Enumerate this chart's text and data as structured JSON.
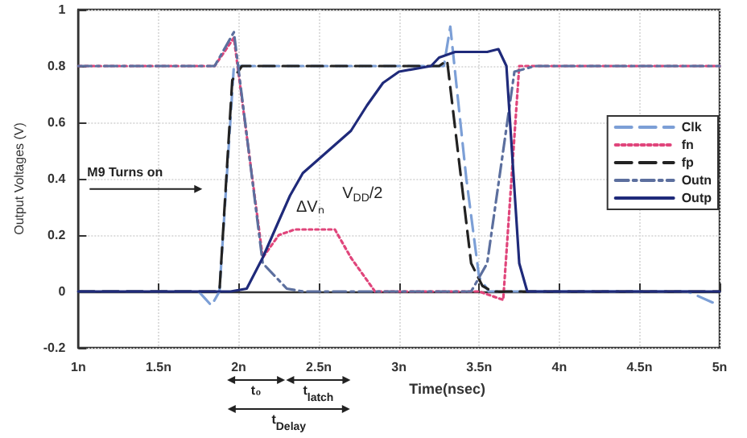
{
  "chart_data": {
    "type": "line",
    "xlabel": "Time(nsec)",
    "ylabel": "Output Voltages (V)",
    "xlim": [
      1,
      5
    ],
    "xticks": [
      {
        "value": 1,
        "label": "1n"
      },
      {
        "value": 1.5,
        "label": "1.5n"
      },
      {
        "value": 2,
        "label": "2n"
      },
      {
        "value": 2.5,
        "label": "2.5n"
      },
      {
        "value": 3,
        "label": "3n"
      },
      {
        "value": 3.5,
        "label": "3.5n"
      },
      {
        "value": 4,
        "label": "4n"
      },
      {
        "value": 4.5,
        "label": "4.5n"
      },
      {
        "value": 5,
        "label": "5n"
      }
    ],
    "ylim": [
      -0.2,
      1
    ],
    "yticks": [
      -0.2,
      0,
      0.2,
      0.4,
      0.6,
      0.8,
      1
    ],
    "grid": true,
    "legend": "right",
    "marker": "none",
    "series": [
      {
        "name": "Clk",
        "color": "#7c9fd6",
        "line_style": "dashed",
        "x": [
          1,
          1.75,
          1.83,
          1.88,
          1.97,
          2.05,
          3.28,
          3.32,
          3.42,
          3.5,
          3.56,
          4.8,
          5
        ],
        "values": [
          0,
          0,
          -0.05,
          0,
          0.8,
          0.8,
          0.8,
          0.94,
          0.4,
          0.05,
          0,
          0,
          -0.05
        ]
      },
      {
        "name": "fn",
        "color": "#e0457b",
        "line_style": "dotted",
        "x": [
          1,
          1.85,
          1.97,
          2.15,
          2.25,
          2.35,
          2.6,
          2.7,
          2.85,
          3.5,
          3.65,
          3.75,
          5
        ],
        "values": [
          0.8,
          0.8,
          0.9,
          0.12,
          0.2,
          0.22,
          0.22,
          0.12,
          0,
          0,
          -0.03,
          0.8,
          0.8
        ]
      },
      {
        "name": "fp",
        "color": "#222222",
        "line_style": "dashed",
        "x": [
          1,
          1.88,
          1.96,
          2.02,
          3.25,
          3.3,
          3.45,
          3.52,
          3.58,
          5
        ],
        "values": [
          0,
          0,
          0.75,
          0.8,
          0.8,
          0.82,
          0.1,
          0.02,
          0,
          0
        ]
      },
      {
        "name": "Outn",
        "color": "#5c6f9e",
        "line_style": "dashdot",
        "x": [
          1,
          1.85,
          1.97,
          2.15,
          2.3,
          2.4,
          3.45,
          3.55,
          3.72,
          3.85,
          5
        ],
        "values": [
          0.8,
          0.8,
          0.92,
          0.1,
          0.01,
          0,
          0,
          0.1,
          0.78,
          0.8,
          0.8
        ]
      },
      {
        "name": "Outp",
        "color": "#1f2a7a",
        "line_style": "solid",
        "x": [
          1,
          1.95,
          2.05,
          2.15,
          2.25,
          2.32,
          2.4,
          2.5,
          2.6,
          2.7,
          2.8,
          2.9,
          3,
          3.2,
          3.25,
          3.35,
          3.55,
          3.62,
          3.67,
          3.75,
          3.8,
          5
        ],
        "values": [
          0,
          0,
          0.01,
          0.12,
          0.25,
          0.34,
          0.42,
          0.47,
          0.52,
          0.57,
          0.66,
          0.74,
          0.78,
          0.8,
          0.83,
          0.85,
          0.85,
          0.86,
          0.8,
          0.1,
          0,
          0
        ]
      }
    ],
    "annotations": [
      "M9 Turns on",
      "ΔVₙ",
      "V$_{DD}$/2",
      "t₀",
      "t$_{latch}$",
      "t$_{Delay}$"
    ]
  }
}
